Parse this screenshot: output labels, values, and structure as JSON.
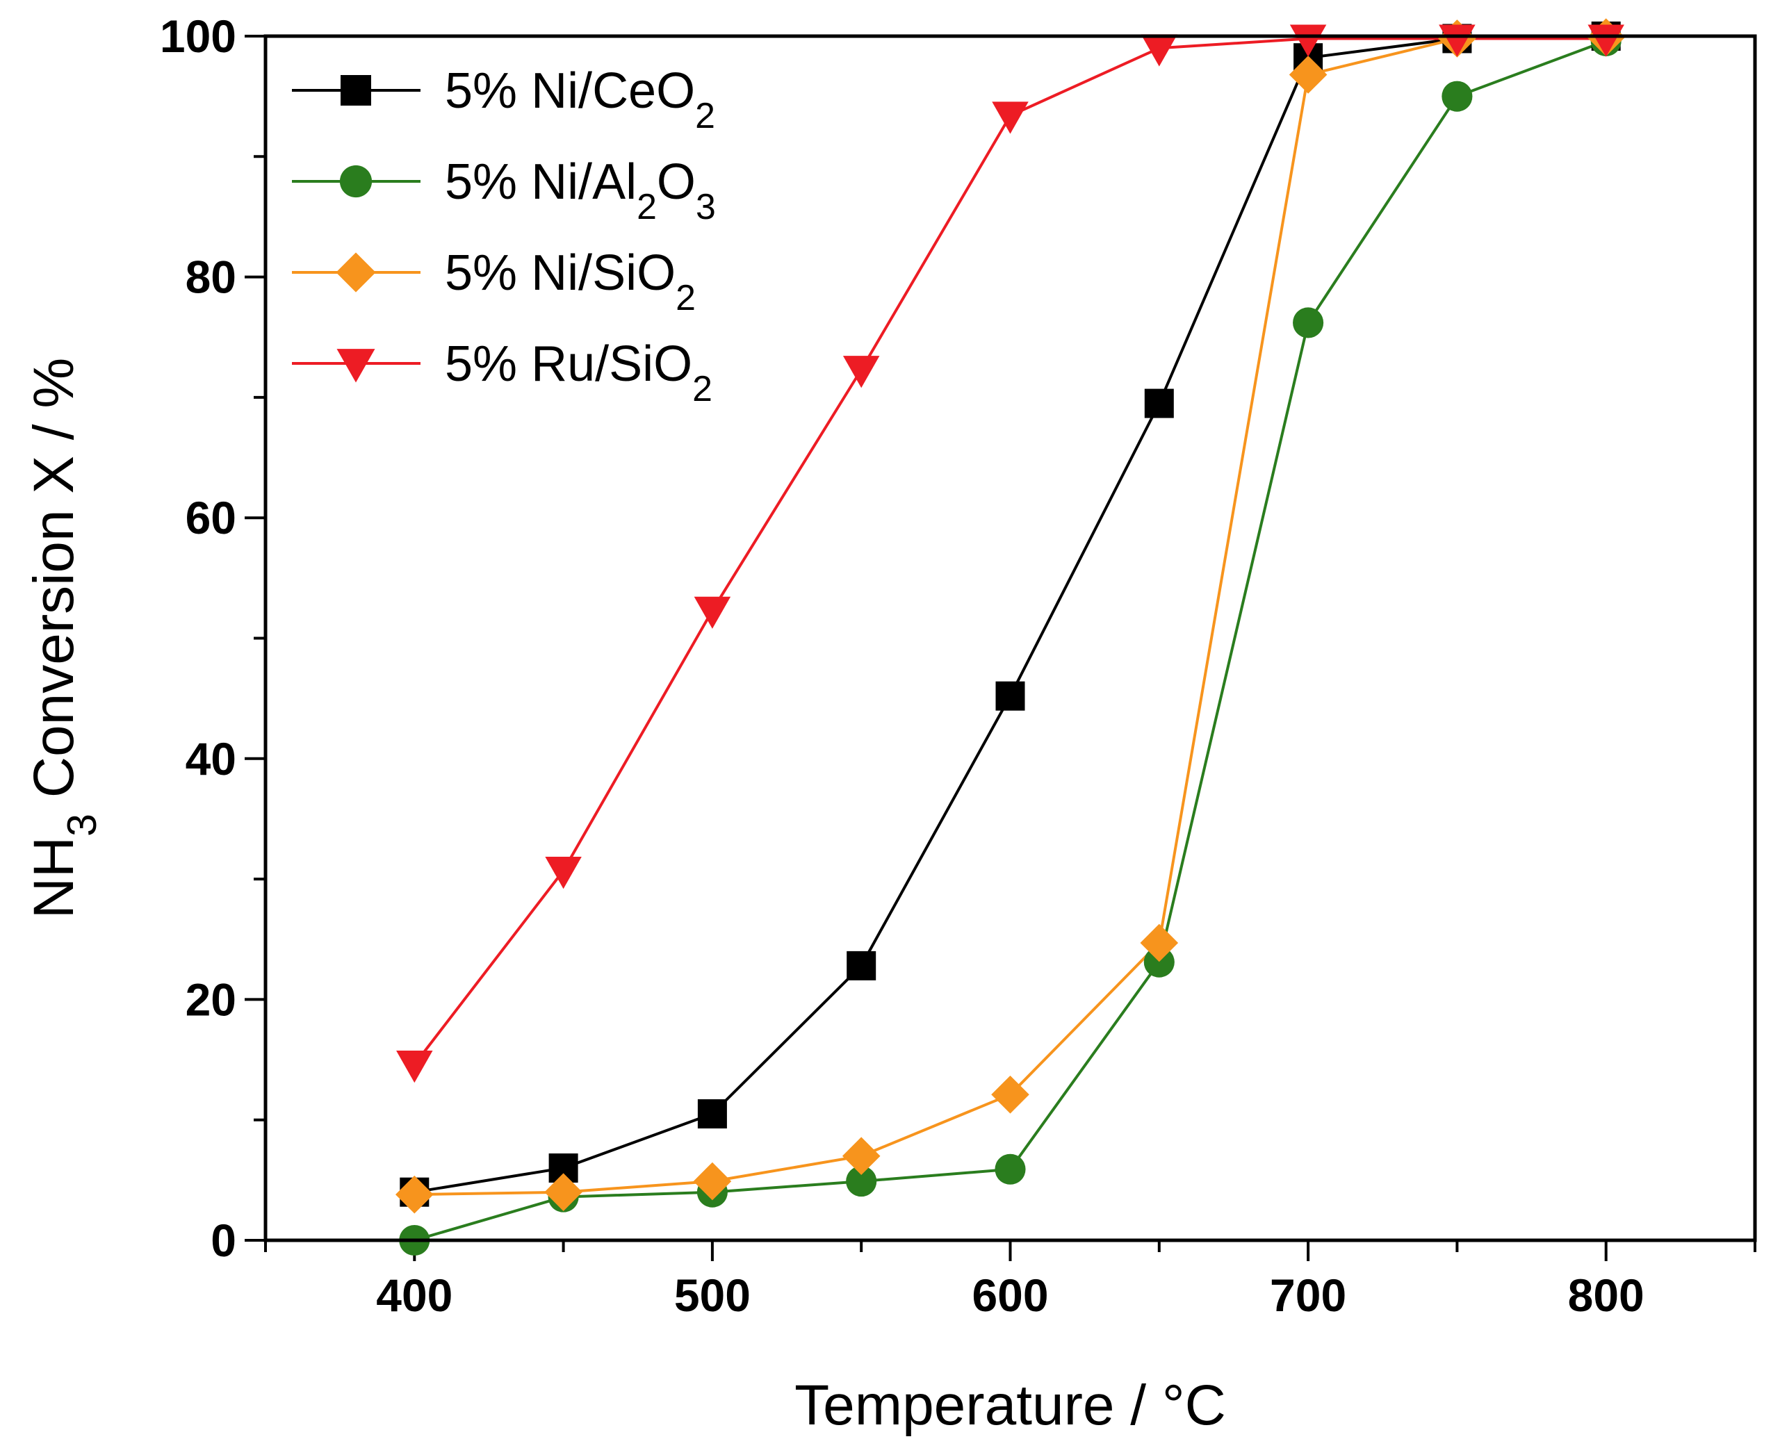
{
  "chart_data": {
    "type": "line",
    "title": "",
    "xlabel": "Temperature / °C",
    "ylabel": {
      "prefix": "NH",
      "subscript": "3",
      "suffix": " Conversion X / %"
    },
    "xlim": [
      350,
      850
    ],
    "ylim": [
      0,
      100
    ],
    "xticks": [
      400,
      500,
      600,
      700,
      800
    ],
    "yticks": [
      0,
      20,
      40,
      60,
      80,
      100
    ],
    "x_minor_step": 50,
    "y_minor_step": 10,
    "legend_position": "top-left",
    "x": [
      400,
      450,
      500,
      550,
      600,
      650,
      700,
      750,
      800
    ],
    "series": [
      {
        "name": "5% Ni/CeO2",
        "label_parts": [
          "5% Ni/CeO",
          "2"
        ],
        "color": "#000000",
        "marker": "square",
        "values": [
          4,
          6,
          10.5,
          22.8,
          45.2,
          69.5,
          98.2,
          99.8,
          100
        ]
      },
      {
        "name": "5% Ni/Al2O3",
        "label_parts": [
          "5% Ni/Al",
          "2",
          "O",
          "3"
        ],
        "color": "#2a7d1e",
        "marker": "circle",
        "values": [
          0,
          3.6,
          4,
          4.9,
          5.9,
          23.1,
          76.2,
          95,
          99.6
        ]
      },
      {
        "name": "5% Ni/SiO2",
        "label_parts": [
          "5% Ni/SiO",
          "2"
        ],
        "color": "#f7941d",
        "marker": "diamond",
        "values": [
          3.8,
          4,
          4.9,
          7,
          12.1,
          24.7,
          96.8,
          99.8,
          99.9
        ]
      },
      {
        "name": "5% Ru/SiO2",
        "label_parts": [
          "5% Ru/SiO",
          "2"
        ],
        "color": "#ed1c24",
        "marker": "triangle-down",
        "values": [
          14.6,
          30.7,
          52.3,
          72.3,
          93.4,
          99,
          99.8,
          99.8,
          99.8
        ]
      }
    ]
  }
}
